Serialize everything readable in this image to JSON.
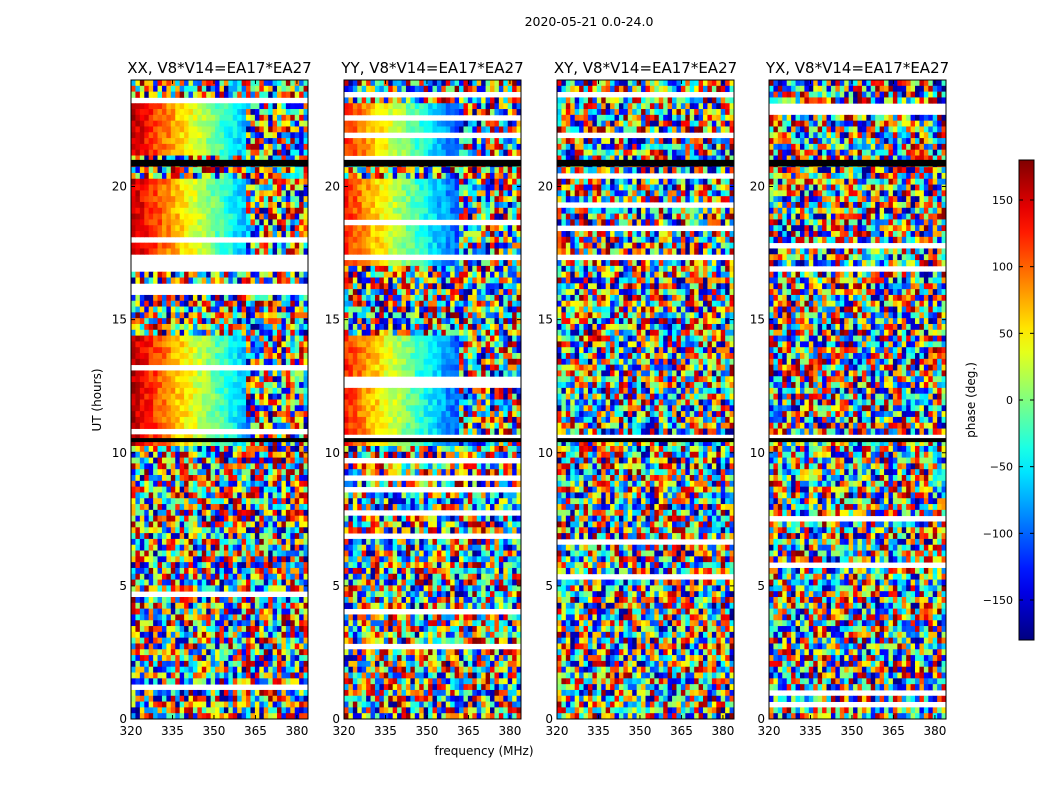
{
  "figure": {
    "suptitle": "2020-05-21 0.0-24.0"
  },
  "chart_data": {
    "type": "heatmap",
    "xlabel": "frequency (MHz)",
    "ylabel": "UT (hours)",
    "xlim": [
      320,
      384
    ],
    "ylim": [
      0,
      24
    ],
    "xticks": [
      320,
      335,
      350,
      365,
      380
    ],
    "yticks": [
      0,
      5,
      10,
      15,
      20
    ],
    "panels": [
      {
        "title": "XX, V8*V14=EA17*EA27",
        "pol": "XX"
      },
      {
        "title": "YY, V8*V14=EA17*EA27",
        "pol": "YY"
      },
      {
        "title": "XY, V8*V14=EA17*EA27",
        "pol": "XY"
      },
      {
        "title": "YX, V8*V14=EA17*EA27",
        "pol": "YX"
      }
    ],
    "colorbar": {
      "label": "phase (deg.)",
      "range": [
        -180,
        180
      ],
      "ticks": [
        150,
        100,
        50,
        0,
        -50,
        -100,
        -150
      ],
      "tick_labels": [
        "150",
        "100",
        "50",
        "0",
        "−50",
        "−100",
        "−150"
      ],
      "colormap": "jet"
    }
  }
}
